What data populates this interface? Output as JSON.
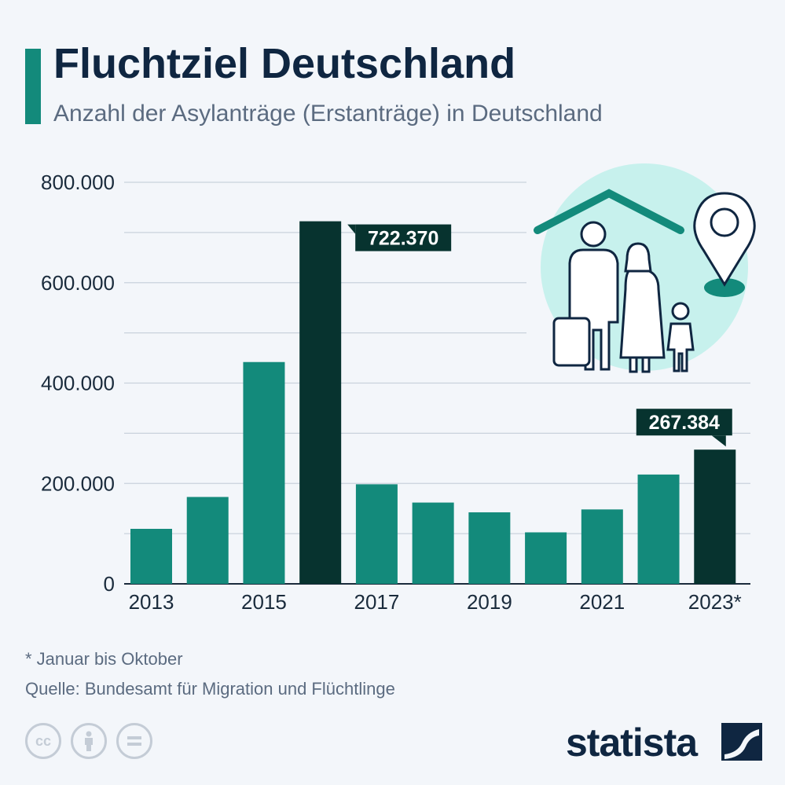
{
  "header": {
    "title": "Fluchtziel Deutschland",
    "subtitle": "Anzahl der Asylanträge (Erstanträge) in Deutschland"
  },
  "chart_data": {
    "type": "bar",
    "categories": [
      "2013",
      "2014",
      "2015",
      "2016",
      "2017",
      "2018",
      "2019",
      "2020",
      "2021",
      "2022",
      "2023*"
    ],
    "values": [
      109580,
      173072,
      441899,
      722370,
      198317,
      161931,
      142509,
      102581,
      148233,
      217774,
      267384
    ],
    "x_tick_labels": [
      "2013",
      "2015",
      "2017",
      "2019",
      "2021",
      "2023*"
    ],
    "y_tick_labels": [
      "0",
      "200.000",
      "400.000",
      "600.000",
      "800.000"
    ],
    "ylim": [
      0,
      800000
    ],
    "grid": true,
    "highlight_color": "#07332f",
    "bar_color": "#138a7b",
    "highlighted": [
      3,
      10
    ],
    "data_labels": [
      {
        "index": 3,
        "text": "722.370"
      },
      {
        "index": 10,
        "text": "267.384"
      }
    ]
  },
  "footer": {
    "note": "* Januar bis Oktober",
    "source": "Quelle: Bundesamt für Migration und Flüchtlinge",
    "license_icons": [
      "cc-icon",
      "attribution-icon",
      "noderivs-icon"
    ],
    "brand": "statista"
  }
}
